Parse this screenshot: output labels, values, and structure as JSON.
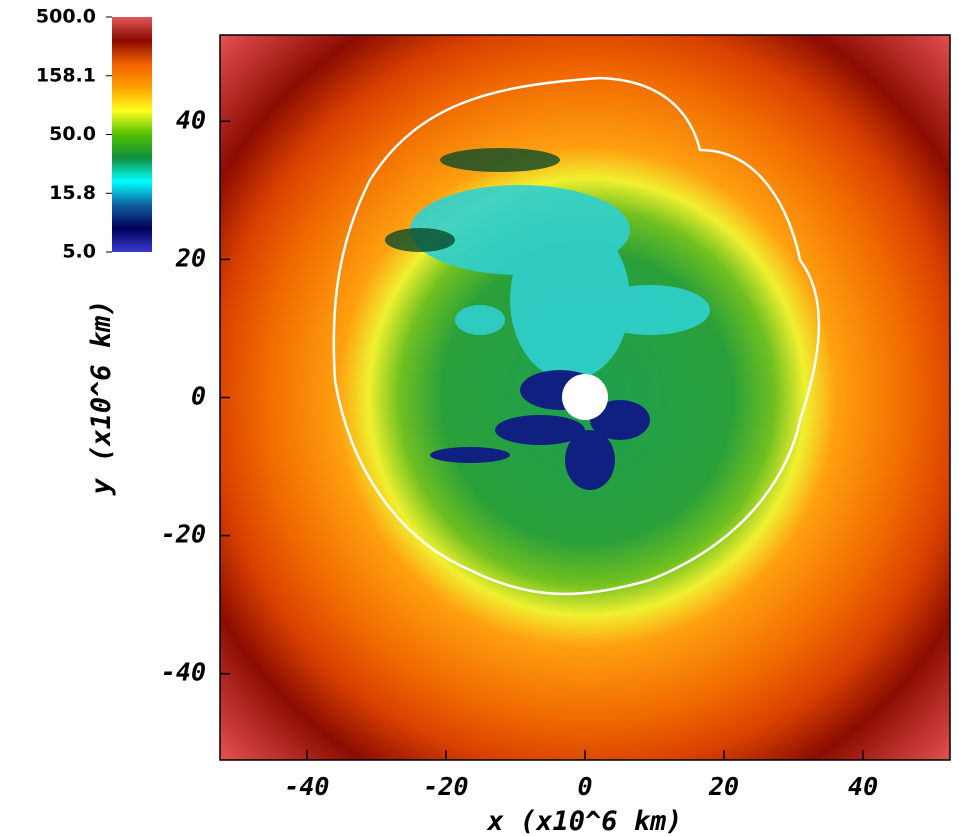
{
  "chart_data": {
    "type": "heatmap",
    "xlabel": "x (x10^6 km)",
    "ylabel": "y (x10^6 km)",
    "xlim": [
      -52.5,
      52.5
    ],
    "ylim": [
      -52.5,
      52.5
    ],
    "xticks": [
      -40,
      -20,
      0,
      20,
      40
    ],
    "yticks": [
      -40,
      -20,
      0,
      20,
      40
    ],
    "colorbar": {
      "clim": [
        5,
        500
      ],
      "log": true,
      "ticks": [
        {
          "value": 500,
          "label": "500.0"
        },
        {
          "value": 158.1,
          "label": "158.1"
        },
        {
          "value": 50,
          "label": "50.0"
        },
        {
          "value": 15.8,
          "label": "15.8"
        },
        {
          "value": 5,
          "label": "5.0"
        }
      ],
      "colormap": [
        "#3a3ad0",
        "#00005a",
        "#1060a0",
        "#00ffff",
        "#109040",
        "#50c000",
        "#ffff20",
        "#ffa000",
        "#f06000",
        "#8a0a00",
        "#e05858"
      ]
    }
  }
}
